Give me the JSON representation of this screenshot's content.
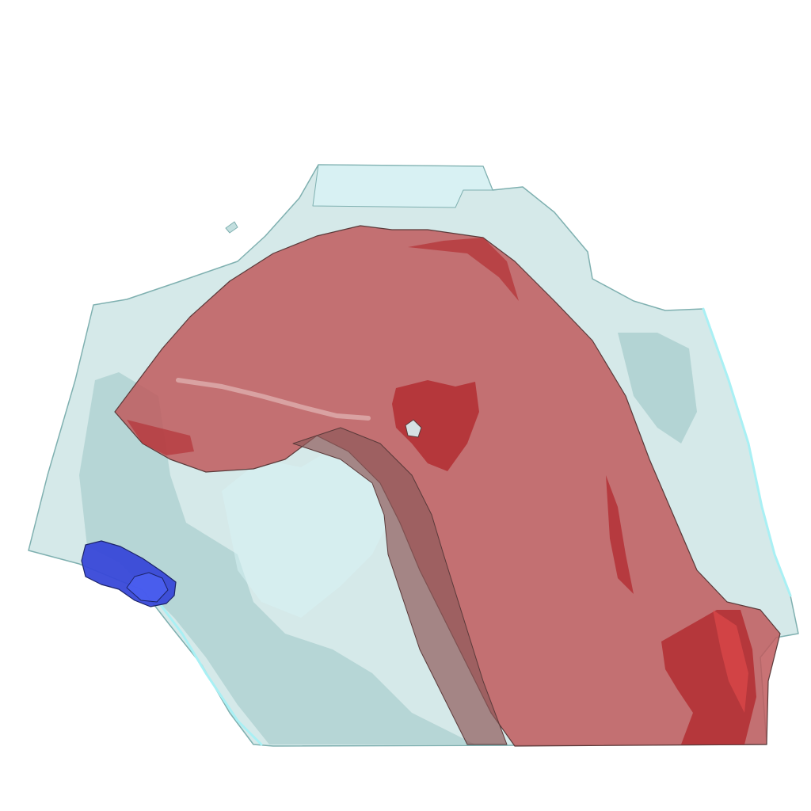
{
  "scene": {
    "background_color": "#ffffff",
    "objects": [
      {
        "name": "outer-translucent-volume",
        "fill_color": "#bcdcdc",
        "fill_opacity": 0.62,
        "edge_color": "#7fb0b0",
        "inner_shadow_color": "#7fb4b4",
        "highlight_color": "#d8f4f6",
        "rim_color": "#a9f0f4"
      },
      {
        "name": "red-structure",
        "fill_color": "#c05a5d",
        "fill_opacity": 0.85,
        "edge_color": "#5a3a3a",
        "dark_patch_color": "#b0242a",
        "highlight_color": "#f05050",
        "stem_color": "#8e5a5a"
      },
      {
        "name": "blue-structure",
        "fill_color": "#3848d8",
        "edge_color": "#1c2468",
        "highlight_color": "#4a5ef0"
      }
    ]
  }
}
